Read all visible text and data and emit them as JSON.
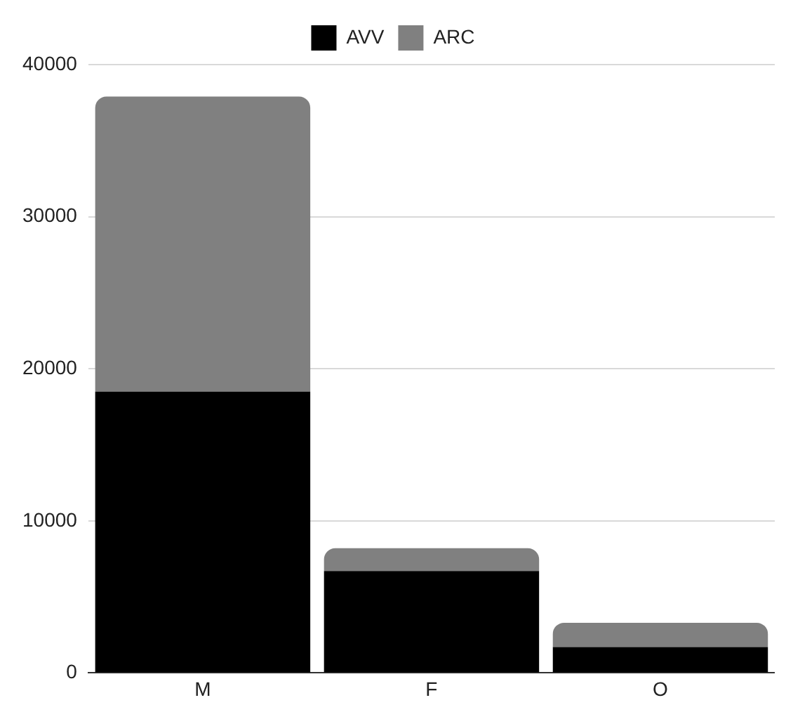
{
  "chart_data": {
    "type": "bar",
    "stacked": true,
    "categories": [
      "M",
      "F",
      "O"
    ],
    "series": [
      {
        "name": "AVV",
        "color": "#000000",
        "values": [
          18500,
          6700,
          1700
        ]
      },
      {
        "name": "ARC",
        "color": "#808080",
        "values": [
          19400,
          1500,
          1600
        ]
      }
    ],
    "ylim": [
      0,
      40000
    ],
    "yticks": [
      0,
      10000,
      20000,
      30000,
      40000
    ],
    "grid": "y",
    "legend": "top"
  }
}
